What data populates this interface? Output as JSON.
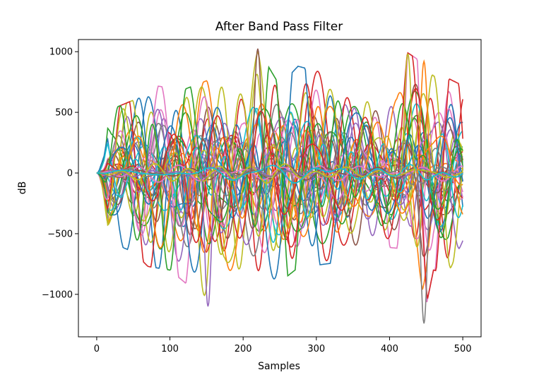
{
  "chart_data": {
    "type": "line",
    "title": "After Band Pass Filter",
    "xlabel": "Samples",
    "ylabel": "dB",
    "xlim": [
      -25,
      525
    ],
    "ylim": [
      -1350,
      1100
    ],
    "x_ticks": [
      0,
      100,
      200,
      300,
      400,
      500
    ],
    "x_tick_labels": [
      "0",
      "100",
      "200",
      "300",
      "400",
      "500"
    ],
    "y_ticks": [
      -1000,
      -500,
      0,
      500,
      1000
    ],
    "y_tick_labels": [
      "−1000",
      "−500",
      "0",
      "500",
      "1000"
    ],
    "grid": false,
    "legend": false,
    "samples": 501,
    "num_series": 40,
    "palette": [
      "#1f77b4",
      "#ff7f0e",
      "#2ca02c",
      "#d62728",
      "#9467bd",
      "#8c564b",
      "#e377c2",
      "#7f7f7f",
      "#bcbd22",
      "#17becf"
    ],
    "envelope": {
      "x": [
        0,
        5,
        10,
        15,
        20,
        30,
        50,
        70,
        100,
        120,
        150,
        175,
        200,
        220,
        250,
        275,
        300,
        325,
        350,
        380,
        410,
        425,
        445,
        460,
        480,
        500
      ],
      "ymax": [
        0,
        200,
        300,
        580,
        520,
        550,
        600,
        730,
        700,
        690,
        760,
        760,
        700,
        1025,
        720,
        880,
        840,
        830,
        710,
        690,
        700,
        990,
        910,
        800,
        780,
        720
      ],
      "ymin": [
        0,
        -200,
        -350,
        -560,
        -580,
        -600,
        -650,
        -770,
        -800,
        -900,
        -1100,
        -850,
        -900,
        -870,
        -900,
        -780,
        -760,
        -740,
        -700,
        -600,
        -620,
        -650,
        -1240,
        -800,
        -830,
        -560
      ]
    },
    "notable_points": [
      {
        "x": 220,
        "y": 1025
      },
      {
        "x": 425,
        "y": 985
      },
      {
        "x": 447,
        "y": 920
      },
      {
        "x": 152,
        "y": -1100
      },
      {
        "x": 447,
        "y": -1240
      }
    ]
  }
}
